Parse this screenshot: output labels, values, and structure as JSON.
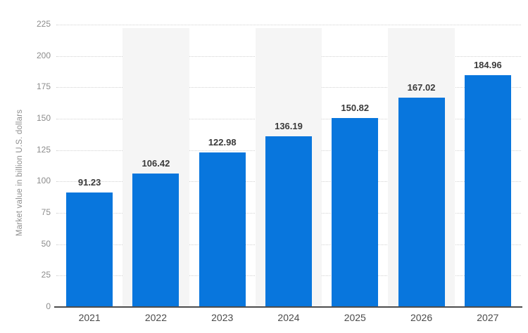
{
  "chart_data": {
    "type": "bar",
    "categories": [
      "2021",
      "2022",
      "2023",
      "2024",
      "2025",
      "2026",
      "2027"
    ],
    "values": [
      91.23,
      106.42,
      122.98,
      136.19,
      150.82,
      167.02,
      184.96
    ],
    "value_labels": [
      "91.23",
      "106.42",
      "122.98",
      "136.19",
      "150.82",
      "167.02",
      "184.96"
    ],
    "title": "",
    "xlabel": "",
    "ylabel": "Market value in billion U.S. dollars",
    "ylim": [
      0,
      225
    ],
    "yticks": [
      0,
      25,
      50,
      75,
      100,
      125,
      150,
      175,
      200,
      225
    ],
    "grid": "horizontal-dotted",
    "legend": "none",
    "highlighted_category_indexes": [
      1,
      3,
      5
    ]
  },
  "colors": {
    "bar": "#0876dd",
    "column_band": "#f5f5f5",
    "gridline": "#d2d2d2",
    "baseline": "#4d4d4d",
    "value_label": "#3a3a3a",
    "year_label": "#4a4a4a",
    "tick_label": "#8c8c8c",
    "axis_title": "#8f8f8f",
    "background": "#ffffff"
  }
}
